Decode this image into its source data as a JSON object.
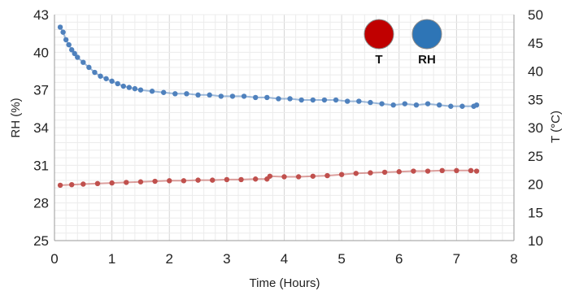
{
  "chart_data": {
    "type": "scatter",
    "xlabel": "Time (Hours)",
    "ylabel_left": "RH (%)",
    "ylabel_right": "T (°C)",
    "xlim": [
      0,
      8
    ],
    "ylim_left": [
      25,
      43
    ],
    "ylim_right": [
      10,
      50
    ],
    "x_ticks": [
      "0",
      "1",
      "2",
      "3",
      "4",
      "5",
      "6",
      "7",
      "8"
    ],
    "y_left_ticks": [
      "25",
      "28",
      "31",
      "34",
      "37",
      "40",
      "43"
    ],
    "y_right_ticks": [
      "10",
      "15",
      "20",
      "25",
      "30",
      "35",
      "40",
      "45",
      "50"
    ],
    "grid": true,
    "legend_position": "top-right",
    "series": [
      {
        "name": "T",
        "axis": "right",
        "color": "#c0504d",
        "x": [
          0.1,
          0.3,
          0.5,
          0.75,
          1.0,
          1.25,
          1.5,
          1.75,
          2.0,
          2.25,
          2.5,
          2.75,
          3.0,
          3.25,
          3.5,
          3.7,
          3.75,
          4.0,
          4.25,
          4.5,
          4.75,
          5.0,
          5.25,
          5.5,
          5.75,
          6.0,
          6.25,
          6.5,
          6.75,
          7.0,
          7.25,
          7.35
        ],
        "y": [
          19.8,
          19.9,
          20.0,
          20.1,
          20.2,
          20.3,
          20.4,
          20.5,
          20.6,
          20.6,
          20.7,
          20.7,
          20.8,
          20.8,
          20.9,
          20.9,
          21.4,
          21.3,
          21.3,
          21.4,
          21.5,
          21.7,
          21.9,
          22.0,
          22.1,
          22.2,
          22.3,
          22.3,
          22.4,
          22.4,
          22.4,
          22.3
        ]
      },
      {
        "name": "RH",
        "axis": "left",
        "color": "#4f81bd",
        "x": [
          0.1,
          0.15,
          0.2,
          0.25,
          0.3,
          0.35,
          0.4,
          0.5,
          0.6,
          0.7,
          0.8,
          0.9,
          1.0,
          1.1,
          1.2,
          1.3,
          1.4,
          1.5,
          1.7,
          1.9,
          2.1,
          2.3,
          2.5,
          2.7,
          2.9,
          3.1,
          3.3,
          3.5,
          3.7,
          3.9,
          4.1,
          4.3,
          4.5,
          4.7,
          4.9,
          5.1,
          5.3,
          5.5,
          5.7,
          5.9,
          6.1,
          6.3,
          6.5,
          6.7,
          6.9,
          7.1,
          7.3,
          7.35
        ],
        "y": [
          42.0,
          41.6,
          41.0,
          40.6,
          40.2,
          39.9,
          39.6,
          39.2,
          38.8,
          38.4,
          38.1,
          37.9,
          37.7,
          37.5,
          37.3,
          37.2,
          37.1,
          37.0,
          36.9,
          36.8,
          36.7,
          36.7,
          36.6,
          36.6,
          36.5,
          36.5,
          36.5,
          36.4,
          36.4,
          36.3,
          36.3,
          36.2,
          36.2,
          36.2,
          36.2,
          36.1,
          36.1,
          36.0,
          35.9,
          35.8,
          35.9,
          35.8,
          35.9,
          35.8,
          35.7,
          35.7,
          35.7,
          35.8
        ]
      }
    ]
  }
}
